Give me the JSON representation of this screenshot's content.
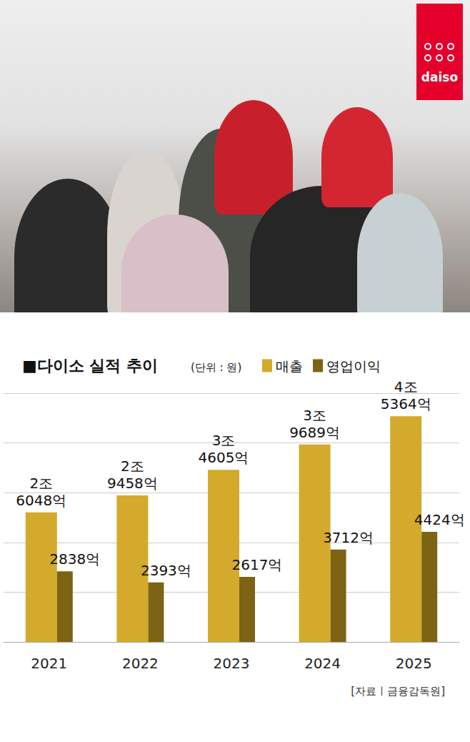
{
  "photo": {
    "logo": "daiso"
  },
  "chart_data": {
    "type": "bar",
    "title": "■다이소 실적 추이",
    "subtitle": "(단위 : 원)",
    "source": "[자료ㅣ금융감독원]",
    "categories": [
      "2021",
      "2022",
      "2023",
      "2024",
      "2025"
    ],
    "series": [
      {
        "name": "매출",
        "color": "#d3aa2c",
        "values": [
          26048,
          29458,
          34605,
          39689,
          45364
        ],
        "value_labels": [
          "2조\n6048억",
          "2조\n9458억",
          "3조\n4605억",
          "3조\n9689억",
          "4조\n5364억"
        ]
      },
      {
        "name": "영업이익",
        "color": "#7c6414",
        "axis": "y2",
        "values": [
          2838,
          2393,
          2617,
          3712,
          4424
        ],
        "value_labels": [
          "2838억",
          "2393억",
          "2617억",
          "3712억",
          "4424억"
        ]
      }
    ],
    "ylim": [
      0,
      50000
    ],
    "yticks": [
      0,
      10000,
      20000,
      30000,
      40000,
      50000
    ],
    "y2lim": [
      0,
      10000
    ],
    "y2ticks": [
      0,
      2000,
      4000,
      6000,
      8000,
      10000
    ],
    "grid": true,
    "legend": "top",
    "data_labels": true,
    "tick_labels": false
  }
}
